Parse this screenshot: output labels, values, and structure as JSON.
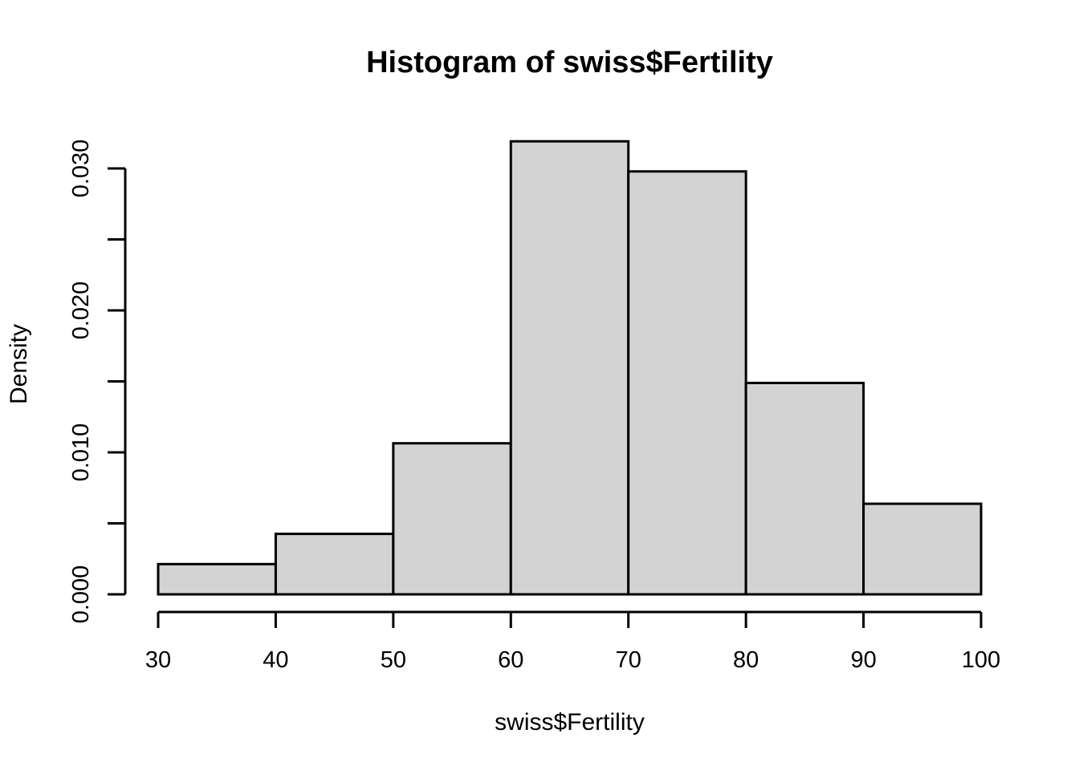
{
  "chart_data": {
    "type": "bar",
    "subtype": "histogram",
    "title": "Histogram of swiss$Fertility",
    "xlabel": "swiss$Fertility",
    "ylabel": "Density",
    "bin_edges": [
      30,
      40,
      50,
      60,
      70,
      80,
      90,
      100
    ],
    "densities": [
      0.00213,
      0.00426,
      0.01064,
      0.03191,
      0.02979,
      0.01489,
      0.00638
    ],
    "x_ticks": [
      30,
      40,
      50,
      60,
      70,
      80,
      90,
      100
    ],
    "x_tick_labels": [
      "30",
      "40",
      "50",
      "60",
      "70",
      "80",
      "90",
      "100"
    ],
    "y_ticks_labeled": [
      0.0,
      0.01,
      0.02,
      0.03
    ],
    "y_tick_label_strings": [
      "0.000",
      "0.010",
      "0.020",
      "0.030"
    ],
    "y_tick_step_minor": 0.005,
    "xlim": [
      30,
      100
    ],
    "ylim": [
      0,
      0.03
    ],
    "grid": false,
    "bar_fill": "#D3D3D3",
    "bar_border": "#000000",
    "axis_color": "#000000",
    "background": "#FFFFFF"
  }
}
